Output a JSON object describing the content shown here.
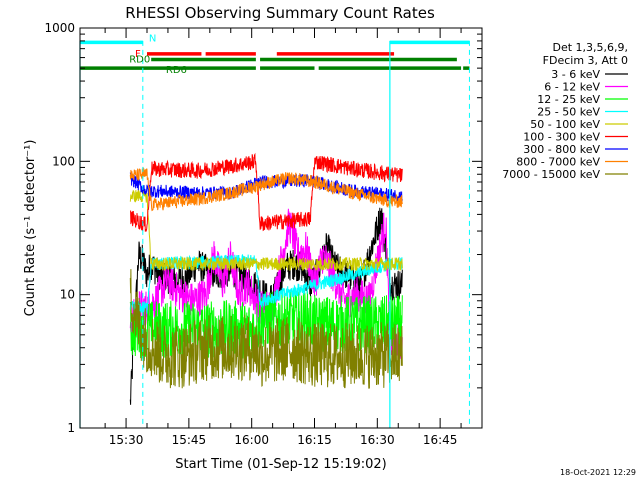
{
  "chart_data": {
    "type": "line",
    "title": "RHESSI Observing Summary Count Rates",
    "xlabel": "Start Time (01-Sep-12 15:19:02)",
    "ylabel": "Count Rate (s⁻¹ detector⁻¹)",
    "y_scale": "log",
    "ylim": [
      1,
      1000
    ],
    "xlim_minutes_after_1519": [
      0,
      96
    ],
    "x_tick_labels": [
      "15:30",
      "15:45",
      "16:00",
      "16:15",
      "16:30",
      "16:45"
    ],
    "x_ticks_minutes": [
      11,
      26,
      41,
      56,
      71,
      86
    ],
    "y_tick_labels": [
      "1",
      "10",
      "100",
      "1000"
    ],
    "y_ticks": [
      1,
      10,
      100,
      1000
    ],
    "grid": false,
    "legend_header": [
      "Det 1,3,5,6,9,",
      "FDecim 3, Att 0"
    ],
    "legend_position": "right",
    "timestamp": "18-Oct-2021 12:29",
    "flag_labels": [
      "N",
      "F",
      "RD0",
      "RD6"
    ],
    "flags": [
      {
        "label": "N",
        "color": "#00ffff",
        "y": 780,
        "segments": [
          [
            0,
            15
          ],
          [
            74,
            93
          ]
        ]
      },
      {
        "label": "F",
        "color": "#ff0000",
        "y": 640,
        "segments": [
          [
            16,
            29
          ],
          [
            30,
            42
          ],
          [
            47,
            75
          ]
        ]
      },
      {
        "label": "RD0",
        "color": "#008000",
        "y": 580,
        "segments": [
          [
            17,
            42
          ],
          [
            43,
            90
          ]
        ]
      },
      {
        "label": "RD6",
        "color": "#008000",
        "y": 500,
        "segments": [
          [
            0,
            42
          ],
          [
            43,
            56
          ],
          [
            57,
            91
          ],
          [
            91.5,
            93
          ]
        ]
      }
    ],
    "vlines_solid": [
      0,
      74
    ],
    "vlines_dashed": [
      15,
      93
    ],
    "data_start_minute": 12,
    "data_end_minute": 77,
    "series": [
      {
        "name": "3 - 6 keV",
        "color": "#000000",
        "x": [
          12,
          14,
          15,
          16,
          17,
          19,
          22,
          25,
          28,
          32,
          36,
          40,
          43,
          45,
          47,
          49,
          51,
          53,
          55,
          57,
          59,
          61,
          64,
          67,
          70,
          72,
          74,
          77
        ],
        "y": [
          1.5,
          20,
          18,
          14,
          17,
          14,
          13,
          13,
          17,
          14,
          15,
          13,
          11,
          9,
          11,
          16,
          17,
          16,
          12,
          15,
          23,
          16,
          14,
          12,
          25,
          40,
          12,
          12
        ]
      },
      {
        "name": "6 - 12 keV",
        "color": "#ff00ff",
        "x": [
          12,
          14,
          16,
          18,
          21,
          24,
          27,
          30,
          32,
          34,
          36,
          38,
          40,
          43,
          46,
          48,
          50,
          52,
          54,
          56,
          58,
          60,
          63,
          66,
          69,
          71,
          73,
          74,
          77
        ],
        "y": [
          6,
          8,
          8,
          9,
          13,
          10,
          9,
          10,
          20,
          12,
          19,
          10,
          12,
          8,
          8,
          18,
          35,
          20,
          22,
          12,
          20,
          15,
          9,
          10,
          9,
          18,
          36,
          4.5,
          4.5
        ]
      },
      {
        "name": "12 - 25 keV",
        "color": "#00ff00",
        "x": [
          12,
          20,
          30,
          42,
          43,
          55,
          56,
          65,
          74,
          77
        ],
        "y": [
          5.5,
          5.5,
          5.5,
          5.5,
          6.5,
          6.5,
          6,
          6,
          6,
          6
        ]
      },
      {
        "name": "25 - 50 keV",
        "color": "#00ffff",
        "x": [
          12,
          16,
          17,
          42,
          43,
          74,
          77
        ],
        "y": [
          8,
          8,
          17,
          18,
          9,
          17,
          17
        ]
      },
      {
        "name": "50 - 100 keV",
        "color": "#cccc00",
        "x": [
          12,
          16,
          17,
          30,
          42,
          43,
          55,
          56,
          74,
          77
        ],
        "y": [
          55,
          55,
          17,
          17,
          17,
          17,
          17,
          17,
          17,
          17
        ]
      },
      {
        "name": "100 - 300 keV",
        "color": "#ff0000",
        "x": [
          12,
          16,
          17,
          28,
          36,
          42,
          43,
          55,
          56,
          65,
          74,
          77
        ],
        "y": [
          38,
          33,
          88,
          85,
          92,
          100,
          34,
          37,
          100,
          88,
          80,
          78
        ]
      },
      {
        "name": "300 - 800 keV",
        "color": "#0000ff",
        "x": [
          12,
          16,
          17,
          28,
          36,
          42,
          43,
          55,
          56,
          65,
          74,
          77
        ],
        "y": [
          75,
          60,
          60,
          58,
          58,
          68,
          70,
          72,
          70,
          60,
          56,
          55
        ]
      },
      {
        "name": "800 - 7000 keV",
        "color": "#ff8000",
        "x": [
          12,
          16,
          17,
          28,
          36,
          42,
          43,
          50,
          56,
          65,
          74,
          77
        ],
        "y": [
          78,
          80,
          47,
          52,
          58,
          65,
          67,
          75,
          70,
          58,
          50,
          50
        ]
      },
      {
        "name": "7000 - 15000 keV",
        "color": "#808000",
        "x": [
          12,
          14,
          16,
          20,
          25,
          30,
          36,
          42,
          43,
          50,
          56,
          65,
          74,
          77
        ],
        "y": [
          10,
          6,
          4.5,
          3.5,
          3.5,
          4,
          4,
          4,
          3.5,
          4,
          3.5,
          3.5,
          3.5,
          3.5
        ]
      }
    ]
  }
}
